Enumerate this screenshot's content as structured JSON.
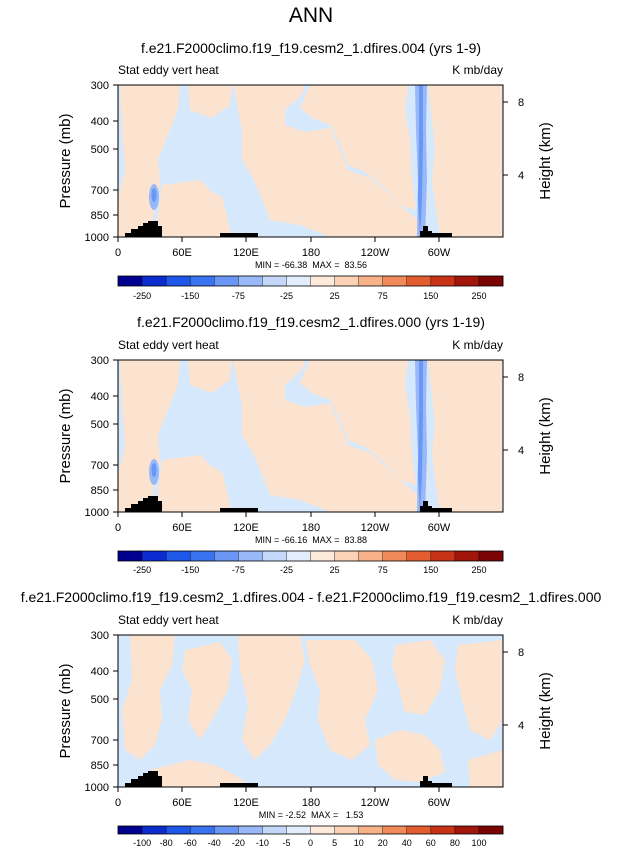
{
  "title": "ANN",
  "label_fill": "#f9e1cc",
  "label_ink": "#111111",
  "chart_data": [
    {
      "type": "heatmap",
      "title": "f.e21.F2000climo.f19_f19.cesm2_1.dfires.004 (yrs 1-9)",
      "left_label": "Stat eddy vert heat",
      "right_label": "K mb/day",
      "ylabel": "Pressure (mb)",
      "y2label": "Height (km)",
      "y_ticks": [
        300,
        400,
        500,
        700,
        850,
        1000
      ],
      "y2_ticks": [
        8,
        4
      ],
      "x_ticks": [
        "0",
        "60E",
        "120E",
        "180",
        "120W",
        "60W"
      ],
      "xlim": [
        0,
        360
      ],
      "ylim": [
        1000,
        300
      ],
      "stats": "MIN = -66.38  MAX =  83.56",
      "colorbar_labels": [
        "-250",
        "-150",
        "-75",
        "-25",
        "25",
        "75",
        "150",
        "250"
      ]
    },
    {
      "type": "heatmap",
      "title": "f.e21.F2000climo.f19_f19.cesm2_1.dfires.000 (yrs 1-19)",
      "left_label": "Stat eddy vert heat",
      "right_label": "K mb/day",
      "ylabel": "Pressure (mb)",
      "y2label": "Height (km)",
      "y_ticks": [
        300,
        400,
        500,
        700,
        850,
        1000
      ],
      "y2_ticks": [
        8,
        4
      ],
      "x_ticks": [
        "0",
        "60E",
        "120E",
        "180",
        "120W",
        "60W"
      ],
      "xlim": [
        0,
        360
      ],
      "ylim": [
        1000,
        300
      ],
      "stats": "MIN = -66.16  MAX =  83.88",
      "colorbar_labels": [
        "-250",
        "-150",
        "-75",
        "-25",
        "25",
        "75",
        "150",
        "250"
      ]
    },
    {
      "type": "heatmap",
      "title": "f.e21.F2000climo.f19_f19.cesm2_1.dfires.004 - f.e21.F2000climo.f19_f19.cesm2_1.dfires.000",
      "left_label": "Stat eddy vert heat",
      "right_label": "K mb/day",
      "ylabel": "Pressure (mb)",
      "y2label": "Height (km)",
      "y_ticks": [
        300,
        400,
        500,
        700,
        850,
        1000
      ],
      "y2_ticks": [
        8,
        4
      ],
      "x_ticks": [
        "0",
        "60E",
        "120E",
        "180",
        "120W",
        "60W"
      ],
      "xlim": [
        0,
        360
      ],
      "ylim": [
        1000,
        300
      ],
      "stats": "MIN = -2.52  MAX =   1.53",
      "colorbar_labels": [
        "-100",
        "-80",
        "-60",
        "-40",
        "-20",
        "-10",
        "-5",
        "0",
        "5",
        "10",
        "20",
        "40",
        "60",
        "80",
        "100"
      ]
    }
  ],
  "colorbars": {
    "full": [
      "#00008f",
      "#0b2ccf",
      "#1f57e8",
      "#3a73f0",
      "#6a97f5",
      "#98b8f8",
      "#c3d8fb",
      "#e3eefd",
      "#fdeadb",
      "#fbd2b6",
      "#f8b28a",
      "#f08a5a",
      "#e35d30",
      "#c83216",
      "#a0160a",
      "#7a0403"
    ],
    "diff": [
      "#00008f",
      "#0b2ccf",
      "#1f57e8",
      "#3a73f0",
      "#6a97f5",
      "#98b8f8",
      "#c3d8fb",
      "#e3eefd",
      "#fdeadb",
      "#fbd2b6",
      "#f8b28a",
      "#f08a5a",
      "#e35d30",
      "#c83216",
      "#a0160a",
      "#7a0403"
    ]
  },
  "colors": {
    "neg": "#d6e8fb",
    "pos": "#fce3cf",
    "neg_strong": "#98b8f8",
    "neg_core": "#6a97f5",
    "topo": "#000000"
  }
}
